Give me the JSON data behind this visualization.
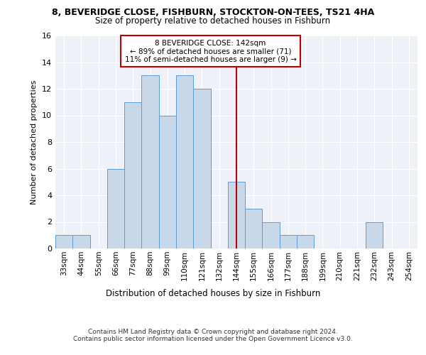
{
  "title1": "8, BEVERIDGE CLOSE, FISHBURN, STOCKTON-ON-TEES, TS21 4HA",
  "title2": "Size of property relative to detached houses in Fishburn",
  "xlabel": "Distribution of detached houses by size in Fishburn",
  "ylabel": "Number of detached properties",
  "bin_labels": [
    "33sqm",
    "44sqm",
    "55sqm",
    "66sqm",
    "77sqm",
    "88sqm",
    "99sqm",
    "110sqm",
    "121sqm",
    "132sqm",
    "144sqm",
    "155sqm",
    "166sqm",
    "177sqm",
    "188sqm",
    "199sqm",
    "210sqm",
    "221sqm",
    "232sqm",
    "243sqm",
    "254sqm"
  ],
  "bar_heights": [
    1,
    1,
    0,
    6,
    11,
    13,
    10,
    13,
    12,
    0,
    5,
    3,
    2,
    1,
    1,
    0,
    0,
    0,
    2,
    0,
    0
  ],
  "bar_color": "#c8d8e8",
  "bar_edgecolor": "#5b9bd5",
  "vline_index": 10,
  "vline_color": "#c00000",
  "annotation_text": "8 BEVERIDGE CLOSE: 142sqm\n← 89% of detached houses are smaller (71)\n11% of semi-detached houses are larger (9) →",
  "annotation_box_color": "#c00000",
  "ylim": [
    0,
    16
  ],
  "yticks": [
    0,
    2,
    4,
    6,
    8,
    10,
    12,
    14,
    16
  ],
  "footer1": "Contains HM Land Registry data © Crown copyright and database right 2024.",
  "footer2": "Contains public sector information licensed under the Open Government Licence v3.0.",
  "bg_color": "#eef2f8",
  "grid_color": "#ffffff"
}
